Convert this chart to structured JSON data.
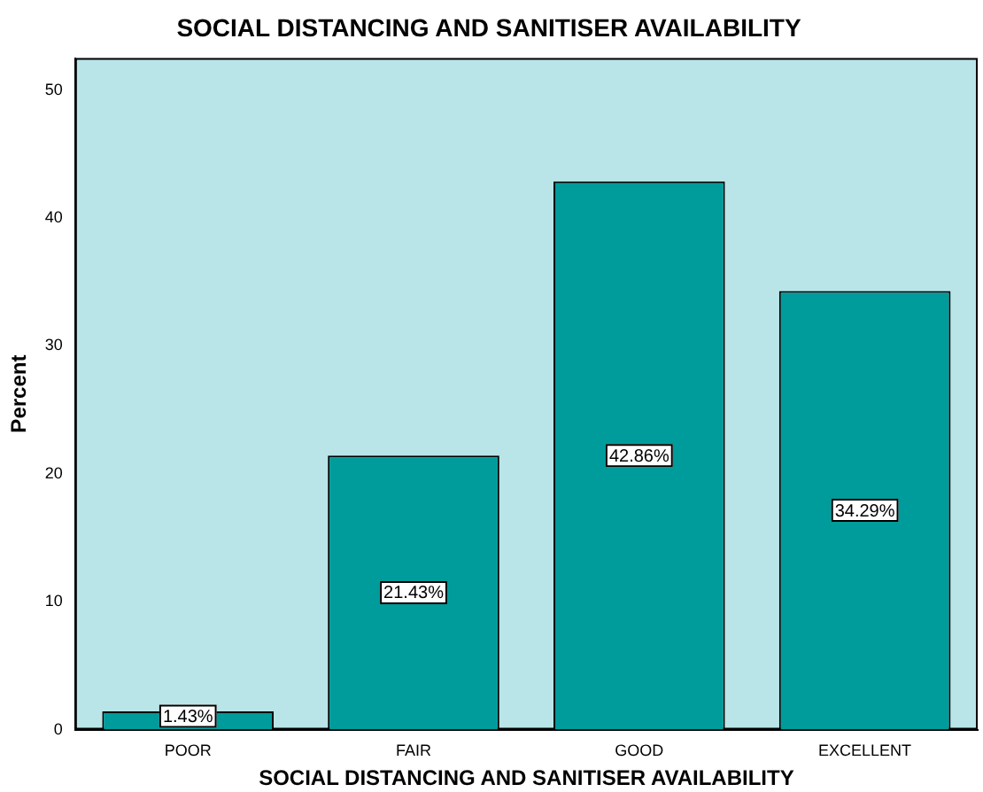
{
  "chart_data": {
    "type": "bar",
    "title": "SOCIAL DISTANCING AND SANITISER AVAILABILITY",
    "xlabel": "SOCIAL DISTANCING AND SANITISER AVAILABILITY",
    "ylabel": "Percent",
    "categories": [
      "POOR",
      "FAIR",
      "GOOD",
      "EXCELLENT"
    ],
    "values": [
      1.43,
      21.43,
      42.86,
      34.29
    ],
    "value_labels": [
      "1.43%",
      "21.43%",
      "42.86%",
      "34.29%"
    ],
    "color": "#009b9b",
    "ylim": [
      0,
      52.5
    ],
    "yticks": [
      0,
      10,
      20,
      30,
      40,
      50
    ],
    "grid": false,
    "legend": false
  }
}
